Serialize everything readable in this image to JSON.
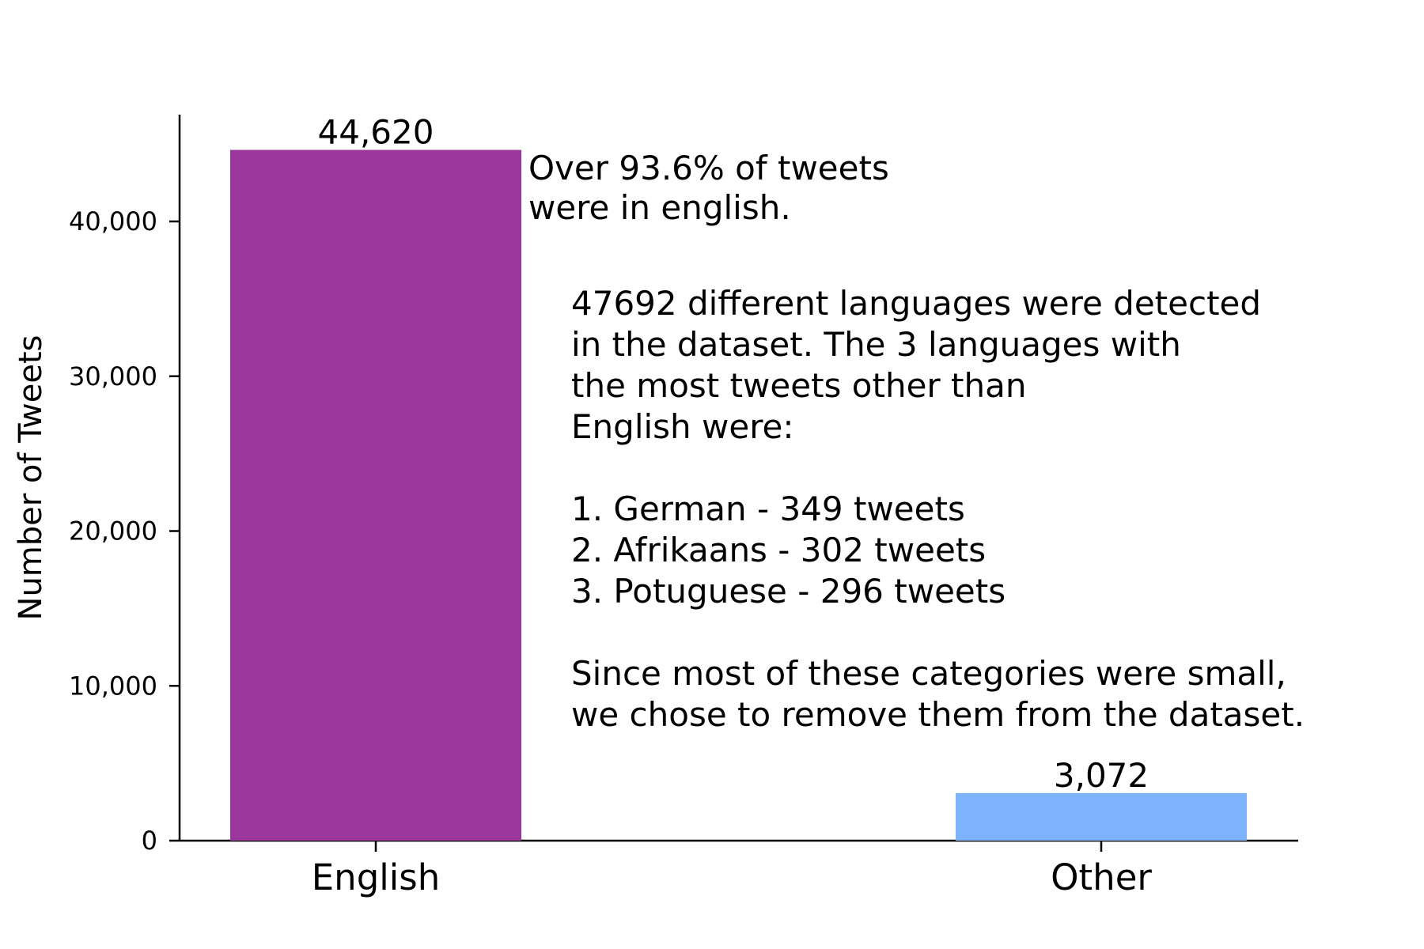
{
  "chart_data": {
    "type": "bar",
    "categories": [
      "English",
      "Other"
    ],
    "values": [
      44620,
      3072
    ],
    "value_labels": [
      "44,620",
      "3,072"
    ],
    "bar_colors": [
      "#9b379c",
      "#7db3fc"
    ],
    "ylabel": "Number of Tweets",
    "ylim": [
      0,
      47000
    ],
    "yticks": [
      0,
      10000,
      20000,
      30000,
      40000
    ],
    "ytick_labels": [
      "0",
      "10,000",
      "20,000",
      "30,000",
      "40,000"
    ],
    "grid": false,
    "legend": "none",
    "annotations": {
      "english_note": [
        "Over 93.6% of tweets",
        "were in english."
      ],
      "details": [
        "47692 different languages were detected",
        "in the dataset. The 3 languages with",
        "the most tweets other than",
        "English were:",
        "",
        "1.  German - 349 tweets",
        "2.  Afrikaans - 302 tweets",
        "3.  Potuguese - 296 tweets",
        "",
        "Since most of these categories were small,",
        "we chose to remove them from the dataset."
      ]
    }
  }
}
